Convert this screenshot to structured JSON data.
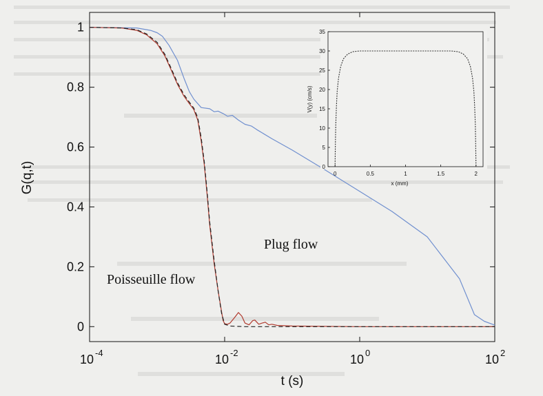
{
  "chart_data": [
    {
      "type": "line",
      "xlabel": "t (s)",
      "ylabel": "G(q,t)",
      "x_scale": "log",
      "xlim": [
        0.0001,
        100
      ],
      "ylim": [
        -0.05,
        1.05
      ],
      "x_ticks": [
        0.0001,
        0.01,
        1,
        100
      ],
      "x_tick_labels": [
        {
          "base": "10",
          "exp": "-4"
        },
        {
          "base": "10",
          "exp": "-2"
        },
        {
          "base": "10",
          "exp": "0"
        },
        {
          "base": "10",
          "exp": "2"
        }
      ],
      "y_ticks": [
        0,
        0.2,
        0.4,
        0.6,
        0.8,
        1
      ],
      "y_tick_labels": [
        "0",
        "0.2",
        "0.4",
        "0.6",
        "0.8",
        "1"
      ],
      "grid": false,
      "series": [
        {
          "color": "#6f8fcf",
          "style": "solid",
          "points": [
            [
              0.0001,
              1.0
            ],
            [
              0.0005,
              0.998
            ],
            [
              0.0008,
              0.99
            ],
            [
              0.001,
              0.982
            ],
            [
              0.0012,
              0.97
            ],
            [
              0.0015,
              0.94
            ],
            [
              0.002,
              0.89
            ],
            [
              0.0025,
              0.83
            ],
            [
              0.003,
              0.785
            ],
            [
              0.0035,
              0.76
            ],
            [
              0.0045,
              0.732
            ],
            [
              0.006,
              0.728
            ],
            [
              0.007,
              0.718
            ],
            [
              0.008,
              0.72
            ],
            [
              0.0095,
              0.712
            ],
            [
              0.011,
              0.703
            ],
            [
              0.013,
              0.706
            ],
            [
              0.016,
              0.69
            ],
            [
              0.02,
              0.676
            ],
            [
              0.025,
              0.67
            ],
            [
              0.03,
              0.658
            ],
            [
              0.05,
              0.628
            ],
            [
              0.1,
              0.59
            ],
            [
              0.3,
              0.525
            ],
            [
              1,
              0.452
            ],
            [
              3,
              0.385
            ],
            [
              10,
              0.3
            ],
            [
              30,
              0.16
            ],
            [
              50,
              0.04
            ],
            [
              70,
              0.018
            ],
            [
              100,
              0.005
            ]
          ]
        },
        {
          "color": "#b03a2e",
          "style": "solid",
          "points": [
            [
              0.0001,
              1.0
            ],
            [
              0.0003,
              0.998
            ],
            [
              0.0005,
              0.99
            ],
            [
              0.0007,
              0.975
            ],
            [
              0.001,
              0.945
            ],
            [
              0.0013,
              0.905
            ],
            [
              0.0016,
              0.86
            ],
            [
              0.002,
              0.81
            ],
            [
              0.0025,
              0.77
            ],
            [
              0.003,
              0.745
            ],
            [
              0.0035,
              0.725
            ],
            [
              0.004,
              0.69
            ],
            [
              0.0045,
              0.62
            ],
            [
              0.005,
              0.54
            ],
            [
              0.0055,
              0.44
            ],
            [
              0.006,
              0.34
            ],
            [
              0.007,
              0.21
            ],
            [
              0.008,
              0.12
            ],
            [
              0.009,
              0.05
            ],
            [
              0.0095,
              0.02
            ],
            [
              0.01,
              0.01
            ],
            [
              0.011,
              0.008
            ],
            [
              0.012,
              0.012
            ],
            [
              0.014,
              0.03
            ],
            [
              0.016,
              0.047
            ],
            [
              0.018,
              0.035
            ],
            [
              0.02,
              0.012
            ],
            [
              0.023,
              0.006
            ],
            [
              0.026,
              0.02
            ],
            [
              0.028,
              0.022
            ],
            [
              0.032,
              0.008
            ],
            [
              0.036,
              0.012
            ],
            [
              0.04,
              0.015
            ],
            [
              0.045,
              0.006
            ],
            [
              0.05,
              0.008
            ],
            [
              0.06,
              0.004
            ],
            [
              0.1,
              0.002
            ],
            [
              1,
              0.0
            ],
            [
              100,
              0.0
            ]
          ]
        },
        {
          "color": "#222222",
          "style": "dashed",
          "points": [
            [
              0.0001,
              1.0
            ],
            [
              0.0003,
              0.998
            ],
            [
              0.0005,
              0.992
            ],
            [
              0.0007,
              0.978
            ],
            [
              0.001,
              0.95
            ],
            [
              0.0013,
              0.91
            ],
            [
              0.0016,
              0.865
            ],
            [
              0.002,
              0.815
            ],
            [
              0.0025,
              0.775
            ],
            [
              0.003,
              0.75
            ],
            [
              0.0035,
              0.73
            ],
            [
              0.004,
              0.698
            ],
            [
              0.0045,
              0.63
            ],
            [
              0.005,
              0.55
            ],
            [
              0.0055,
              0.45
            ],
            [
              0.006,
              0.35
            ],
            [
              0.007,
              0.22
            ],
            [
              0.008,
              0.12
            ],
            [
              0.009,
              0.045
            ],
            [
              0.01,
              0.008
            ],
            [
              0.012,
              0.002
            ],
            [
              0.02,
              0.0
            ],
            [
              1,
              0.0
            ],
            [
              100,
              0.0
            ]
          ]
        }
      ],
      "annotations": [
        "Plug flow",
        "Poisseuille flow"
      ]
    },
    {
      "type": "line",
      "xlabel": "x (mm)",
      "ylabel": "V(y) (cm/s)",
      "xlim": [
        -0.1,
        2.1
      ],
      "ylim": [
        0,
        35
      ],
      "x_tick_labels": [
        "0",
        "0.5",
        "1",
        "1.5",
        "2"
      ],
      "y_tick_labels": [
        "0",
        "5",
        "10",
        "15",
        "20",
        "25",
        "30",
        "35"
      ],
      "series": [
        {
          "color": "#333333",
          "style": "dotted",
          "points": [
            [
              0.0,
              0
            ],
            [
              0.005,
              6
            ],
            [
              0.01,
              11
            ],
            [
              0.02,
              16
            ],
            [
              0.03,
              19.5
            ],
            [
              0.05,
              23
            ],
            [
              0.08,
              26
            ],
            [
              0.12,
              28
            ],
            [
              0.18,
              29.2
            ],
            [
              0.25,
              29.8
            ],
            [
              0.35,
              30
            ],
            [
              1.65,
              30
            ],
            [
              1.75,
              29.8
            ],
            [
              1.82,
              29.2
            ],
            [
              1.88,
              28
            ],
            [
              1.92,
              26
            ],
            [
              1.95,
              23
            ],
            [
              1.97,
              19.5
            ],
            [
              1.98,
              16
            ],
            [
              1.99,
              11
            ],
            [
              1.995,
              6
            ],
            [
              2.0,
              0
            ]
          ]
        }
      ]
    }
  ]
}
